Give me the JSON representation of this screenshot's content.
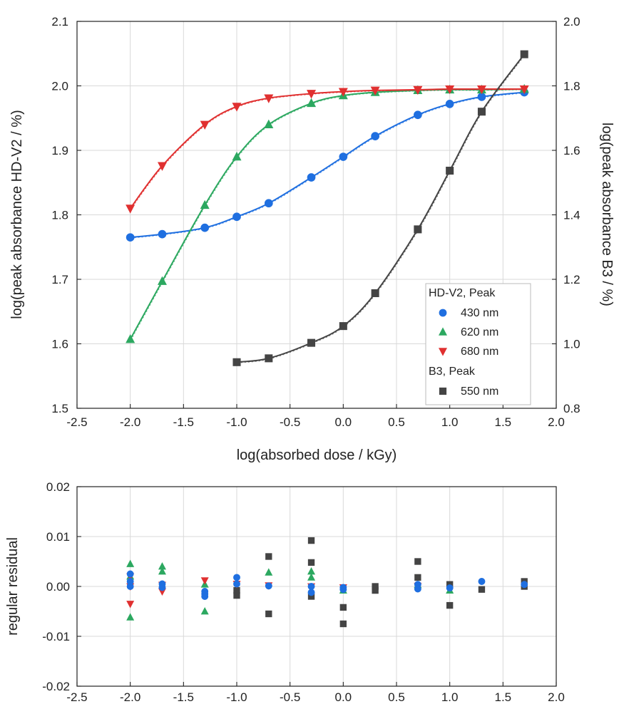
{
  "chart_data": [
    {
      "type": "scatter",
      "xlabel": "log(absorbed dose / kGy)",
      "ylabel": "log(peak absorbance HD-V2 / %)",
      "ylabel_right": "log(peak absorbance B3 / %)",
      "xlim": [
        -2.5,
        2.0
      ],
      "ylim": [
        1.5,
        2.1
      ],
      "ylim_right": [
        0.8,
        2.0
      ],
      "xticks": [
        "-2.5",
        "-2.0",
        "-1.5",
        "-1.0",
        "-0.5",
        "0.0",
        "0.5",
        "1.0",
        "1.5",
        "2.0"
      ],
      "yticks": [
        "1.5",
        "1.6",
        "1.7",
        "1.8",
        "1.9",
        "2.0",
        "2.1"
      ],
      "yticks_right": [
        "0.8",
        "1.0",
        "1.2",
        "1.4",
        "1.6",
        "1.8",
        "2.0"
      ],
      "legend": {
        "position": "center-right",
        "group1": "HD-V2, Peak",
        "group2": "B3, Peak"
      },
      "series": [
        {
          "name": "430 nm",
          "axis": "left",
          "color": "#1f6fe0",
          "marker": "circle",
          "x": [
            -2.0,
            -1.7,
            -1.3,
            -1.0,
            -0.7,
            -0.3,
            0.0,
            0.3,
            0.7,
            1.0,
            1.3,
            1.7
          ],
          "y": [
            1.765,
            1.77,
            1.78,
            1.797,
            1.818,
            1.858,
            1.89,
            1.922,
            1.955,
            1.972,
            1.983,
            1.99
          ]
        },
        {
          "name": "620 nm",
          "axis": "left",
          "color": "#2ca860",
          "marker": "triangle-up",
          "x": [
            -2.0,
            -1.7,
            -1.3,
            -1.0,
            -0.7,
            -0.3,
            0.0,
            0.3,
            0.7,
            1.0,
            1.3,
            1.7
          ],
          "y": [
            1.607,
            1.697,
            1.815,
            1.89,
            1.94,
            1.973,
            1.985,
            1.99,
            1.993,
            1.994,
            1.994,
            1.995
          ]
        },
        {
          "name": "680 nm",
          "axis": "left",
          "color": "#e03030",
          "marker": "triangle-down",
          "x": [
            -2.0,
            -1.7,
            -1.3,
            -1.0,
            -0.7,
            -0.3,
            0.0,
            0.3,
            0.7,
            1.0,
            1.3,
            1.7
          ],
          "y": [
            1.81,
            1.876,
            1.94,
            1.968,
            1.981,
            1.988,
            1.991,
            1.993,
            1.994,
            1.995,
            1.995,
            1.995
          ]
        },
        {
          "name": "550 nm",
          "axis": "right",
          "color": "#444444",
          "marker": "square",
          "x": [
            -1.0,
            -0.7,
            -0.3,
            0.0,
            0.3,
            0.7,
            1.0,
            1.3,
            1.7
          ],
          "y": [
            0.943,
            0.955,
            1.003,
            1.055,
            1.157,
            1.355,
            1.537,
            1.72,
            1.898
          ]
        }
      ]
    },
    {
      "type": "scatter",
      "xlabel": "",
      "ylabel": "regular residual",
      "xlim": [
        -2.5,
        2.0
      ],
      "ylim": [
        -0.02,
        0.02
      ],
      "xticks": [
        "-2.5",
        "-2.0",
        "-1.5",
        "-1.0",
        "-0.5",
        "0.0",
        "0.5",
        "1.0",
        "1.5",
        "2.0"
      ],
      "yticks": [
        "-0.02",
        "-0.01",
        "0.00",
        "0.01",
        "0.02"
      ],
      "series": [
        {
          "name": "430 nm",
          "color": "#1f6fe0",
          "marker": "circle",
          "x": [
            -2.0,
            -2.0,
            -2.0,
            -1.7,
            -1.7,
            -1.3,
            -1.3,
            -1.3,
            -1.0,
            -1.0,
            -0.7,
            -0.3,
            -0.3,
            0.0,
            0.0,
            0.7,
            0.7,
            1.0,
            1.3,
            1.7
          ],
          "y": [
            0.0025,
            0.001,
            0.0,
            0.0005,
            -0.0002,
            -0.001,
            -0.0015,
            -0.002,
            0.0018,
            0.0005,
            0.0001,
            0.0,
            -0.0012,
            -0.0002,
            -0.0006,
            0.0004,
            -0.0005,
            -0.0003,
            0.001,
            0.0004
          ]
        },
        {
          "name": "620 nm",
          "color": "#2ca860",
          "marker": "triangle-up",
          "x": [
            -2.0,
            -2.0,
            -2.0,
            -1.7,
            -1.7,
            -1.3,
            -1.3,
            -0.7,
            -0.3,
            -0.3,
            0.0,
            0.7,
            1.0
          ],
          "y": [
            0.0045,
            -0.0062,
            0.002,
            0.004,
            0.003,
            -0.005,
            0.0004,
            0.0028,
            0.003,
            0.0018,
            -0.0008,
            0.0003,
            -0.0008
          ]
        },
        {
          "name": "680 nm",
          "color": "#e03030",
          "marker": "triangle-down",
          "x": [
            -2.0,
            -2.0,
            -2.0,
            -1.7,
            -1.7,
            -1.3,
            -1.0,
            -0.7,
            -0.3,
            0.0,
            0.7
          ],
          "y": [
            0.002,
            -0.0035,
            0.0,
            -0.001,
            0.0003,
            0.0012,
            0.0005,
            0.0002,
            0.0,
            -0.0002,
            0.0001
          ]
        },
        {
          "name": "550 nm",
          "color": "#444444",
          "marker": "square",
          "x": [
            -1.0,
            -1.0,
            -0.7,
            -0.7,
            -0.3,
            -0.3,
            -0.3,
            0.0,
            0.0,
            0.3,
            0.3,
            0.7,
            0.7,
            1.0,
            1.0,
            1.3,
            1.7,
            1.7
          ],
          "y": [
            -0.0008,
            -0.0018,
            0.006,
            -0.0055,
            0.0092,
            0.0048,
            -0.002,
            -0.0042,
            -0.0075,
            0.0,
            -0.0008,
            0.005,
            0.0018,
            -0.0038,
            0.0004,
            -0.0006,
            0.001,
            0.0
          ]
        }
      ]
    }
  ]
}
